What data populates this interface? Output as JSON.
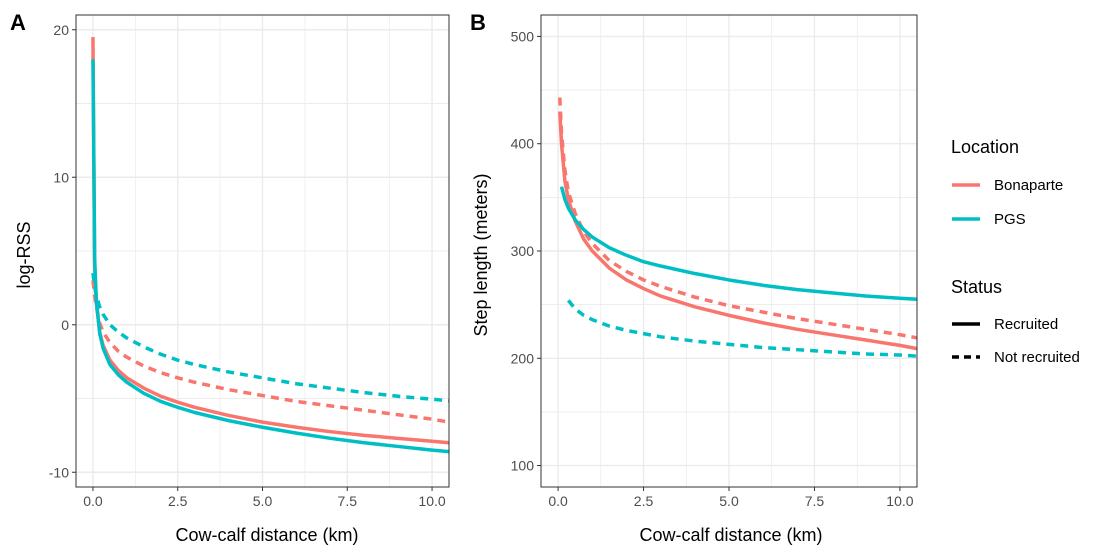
{
  "colors": {
    "Bonaparte": "#F8766D",
    "PGS": "#00BFC4",
    "grid": "#EBEBEB",
    "panel_border": "#333333"
  },
  "legend": {
    "location_title": "Location",
    "location_items": [
      {
        "label": "Bonaparte",
        "color": "#F8766D"
      },
      {
        "label": "PGS",
        "color": "#00BFC4"
      }
    ],
    "status_title": "Status",
    "status_items": [
      {
        "label": "Recruited",
        "dash": "solid"
      },
      {
        "label": "Not recruited",
        "dash": "dashed"
      }
    ],
    "placement": "right"
  },
  "chart_data": [
    {
      "type": "line",
      "tag": "A",
      "xlabel": "Cow-calf distance (km)",
      "ylabel": "log-RSS",
      "xlim": [
        -0.5,
        10.5
      ],
      "ylim": [
        -11,
        21
      ],
      "xticks": [
        0,
        2.5,
        5,
        7.5,
        10
      ],
      "xtick_labels": [
        "0.0",
        "2.5",
        "5.0",
        "7.5",
        "10.0"
      ],
      "yticks": [
        -10,
        0,
        10,
        20
      ],
      "ytick_labels": [
        "-10",
        "0",
        "10",
        "20"
      ],
      "grid": true,
      "series": [
        {
          "location": "Bonaparte",
          "status": "Recruited",
          "x": [
            0,
            0.05,
            0.1,
            0.2,
            0.3,
            0.5,
            0.75,
            1,
            1.5,
            2,
            2.5,
            3,
            4,
            5,
            6,
            7,
            8,
            9,
            10,
            10.5
          ],
          "y": [
            19.5,
            4.0,
            1.5,
            -0.5,
            -1.4,
            -2.4,
            -3.1,
            -3.6,
            -4.3,
            -4.85,
            -5.25,
            -5.6,
            -6.15,
            -6.6,
            -6.95,
            -7.25,
            -7.5,
            -7.7,
            -7.9,
            -8.0
          ]
        },
        {
          "location": "Bonaparte",
          "status": "Not recruited",
          "x": [
            0,
            0.05,
            0.1,
            0.2,
            0.3,
            0.5,
            0.75,
            1,
            1.5,
            2,
            2.5,
            3,
            4,
            5,
            6,
            7,
            8,
            9,
            10,
            10.5
          ],
          "y": [
            3.0,
            2.0,
            1.2,
            0.1,
            -0.5,
            -1.2,
            -1.8,
            -2.2,
            -2.8,
            -3.25,
            -3.6,
            -3.9,
            -4.4,
            -4.8,
            -5.2,
            -5.5,
            -5.8,
            -6.1,
            -6.4,
            -6.6
          ]
        },
        {
          "location": "PGS",
          "status": "Recruited",
          "x": [
            0,
            0.05,
            0.1,
            0.2,
            0.3,
            0.5,
            0.75,
            1,
            1.5,
            2,
            2.5,
            3,
            4,
            5,
            6,
            7,
            8,
            9,
            10,
            10.5
          ],
          "y": [
            18.0,
            4.5,
            1.6,
            -0.6,
            -1.6,
            -2.7,
            -3.4,
            -3.9,
            -4.65,
            -5.2,
            -5.6,
            -5.95,
            -6.5,
            -6.95,
            -7.35,
            -7.7,
            -8.0,
            -8.25,
            -8.5,
            -8.6
          ]
        },
        {
          "location": "PGS",
          "status": "Not recruited",
          "x": [
            0,
            0.05,
            0.1,
            0.2,
            0.3,
            0.5,
            0.75,
            1,
            1.5,
            2,
            2.5,
            3,
            4,
            5,
            6,
            7,
            8,
            9,
            10,
            10.5
          ],
          "y": [
            3.5,
            2.6,
            2.0,
            1.2,
            0.7,
            0.0,
            -0.5,
            -0.9,
            -1.5,
            -2.0,
            -2.4,
            -2.7,
            -3.2,
            -3.6,
            -4.0,
            -4.3,
            -4.6,
            -4.85,
            -5.05,
            -5.15
          ]
        }
      ]
    },
    {
      "type": "line",
      "tag": "B",
      "xlabel": "Cow-calf distance (km)",
      "ylabel": "Step length (meters)",
      "xlim": [
        -0.5,
        10.5
      ],
      "ylim": [
        80,
        520
      ],
      "xticks": [
        0,
        2.5,
        5,
        7.5,
        10
      ],
      "xtick_labels": [
        "0.0",
        "2.5",
        "5.0",
        "7.5",
        "10.0"
      ],
      "yticks": [
        100,
        200,
        300,
        400,
        500
      ],
      "ytick_labels": [
        "100",
        "200",
        "300",
        "400",
        "500"
      ],
      "grid": true,
      "series": [
        {
          "location": "Bonaparte",
          "status": "Not recruited",
          "x": [
            0.05,
            0.1,
            0.2,
            0.3,
            0.5,
            0.75,
            1,
            1.5,
            2,
            2.5,
            3,
            4,
            5,
            6,
            7,
            8,
            9,
            10,
            10.5
          ],
          "y": [
            443,
            410,
            375,
            355,
            335,
            318,
            307,
            291,
            281,
            273,
            267,
            257,
            249,
            243,
            237,
            232,
            227,
            222,
            219
          ]
        },
        {
          "location": "Bonaparte",
          "status": "Recruited",
          "x": [
            0.05,
            0.1,
            0.2,
            0.3,
            0.5,
            0.75,
            1,
            1.5,
            2,
            2.5,
            3,
            4,
            5,
            6,
            7,
            8,
            9,
            10,
            10.5
          ],
          "y": [
            430,
            400,
            365,
            348,
            328,
            311,
            300,
            284,
            273,
            265,
            258,
            248,
            240,
            233,
            227,
            222,
            217,
            212,
            209
          ]
        },
        {
          "location": "PGS",
          "status": "Recruited",
          "x": [
            0.1,
            0.2,
            0.3,
            0.5,
            0.75,
            1,
            1.5,
            2,
            2.5,
            3,
            4,
            5,
            6,
            7,
            8,
            9,
            10,
            10.5
          ],
          "y": [
            360,
            348,
            340,
            329,
            320,
            313,
            303,
            296,
            290,
            286,
            279,
            273,
            268,
            264,
            261,
            258,
            256,
            255
          ]
        },
        {
          "location": "PGS",
          "status": "Not recruited",
          "x": [
            0.3,
            0.5,
            0.75,
            1,
            1.5,
            2,
            2.5,
            3,
            4,
            5,
            6,
            7,
            8,
            9,
            10,
            10.5
          ],
          "y": [
            254,
            246,
            240,
            236,
            230,
            226,
            223,
            220,
            216,
            213,
            210,
            208,
            206,
            204,
            203,
            202
          ]
        }
      ]
    }
  ]
}
